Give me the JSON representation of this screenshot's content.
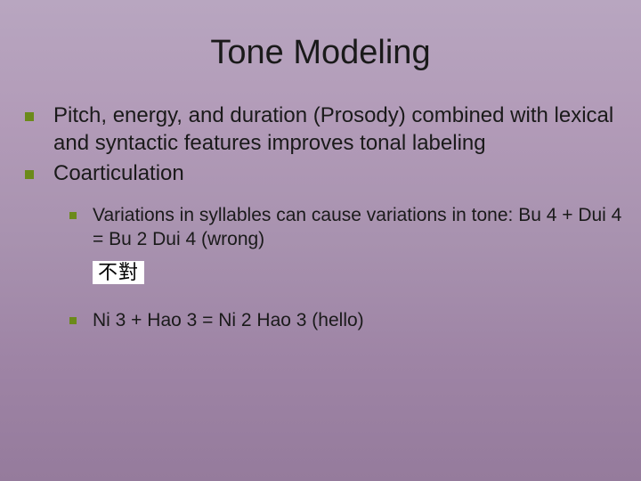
{
  "title": "Tone Modeling",
  "bullets": [
    "Pitch, energy, and duration (Prosody) combined with lexical and syntactic features improves tonal labeling",
    "Coarticulation"
  ],
  "sub_bullets": [
    "Variations in syllables can cause variations in tone: Bu 4 + Dui 4 = Bu 2 Dui 4 (wrong)",
    "Ni 3 + Hao 3 = Ni 2 Hao 3 (hello)"
  ],
  "chinese_text": "不對",
  "colors": {
    "bullet": "#6b8a1a",
    "bg_top": "#b8a6c0",
    "bg_bottom": "#957b9c",
    "text": "#1a1a1a",
    "chinese_bg": "#ffffff"
  },
  "fonts": {
    "title_size": 38,
    "body_size": 24,
    "sub_size": 21
  }
}
